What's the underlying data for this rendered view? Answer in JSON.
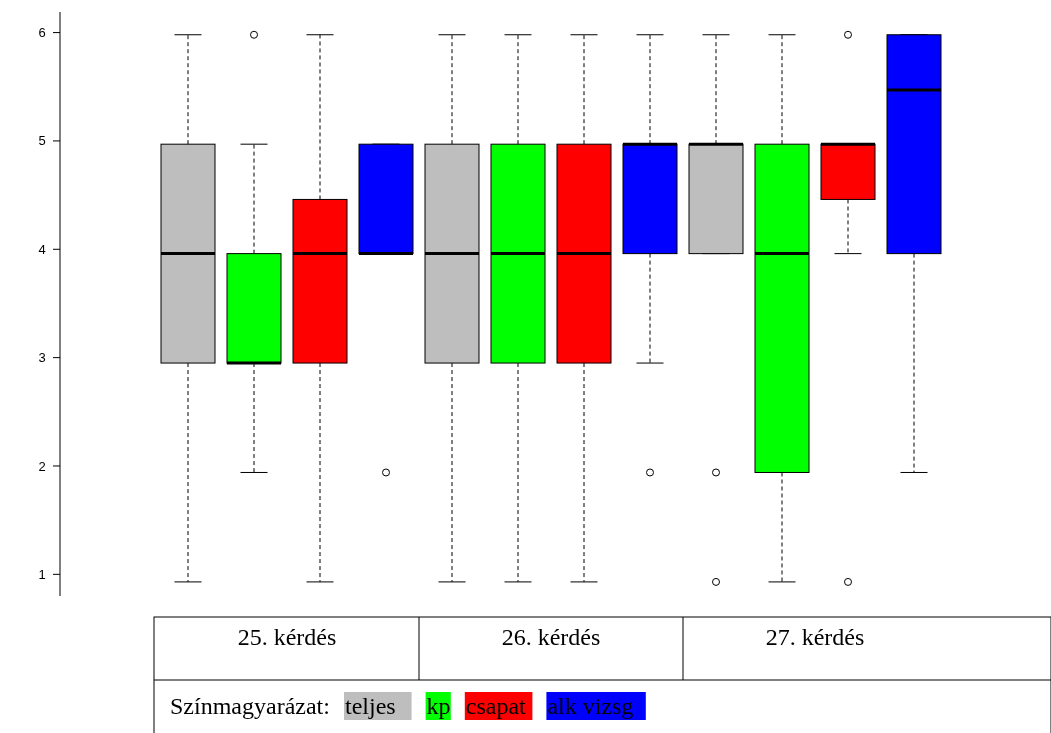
{
  "chart_data": {
    "type": "box",
    "categories": [
      "25. kérdés",
      "26. kérdés",
      "27. kérdés"
    ],
    "ylim": [
      0.8,
      6.19
    ],
    "yticks": [
      1,
      2,
      3,
      4,
      5,
      6
    ],
    "grid": false,
    "legend": "bottom",
    "legend_title": "Színmagyarázat:",
    "series": [
      {
        "name": "teljes",
        "color": "#bebebe",
        "boxes": [
          {
            "low": 0.93,
            "q1": 2.95,
            "median": 3.96,
            "q3": 4.97,
            "high": 5.98
          },
          {
            "low": 0.93,
            "q1": 2.95,
            "median": 3.96,
            "q3": 4.97,
            "high": 5.98
          },
          {
            "low": 3.96,
            "q1": 3.96,
            "median": 4.97,
            "q3": 4.97,
            "high": 5.98,
            "outliers": [
              1.94,
              0.93
            ]
          }
        ]
      },
      {
        "name": "kp",
        "color": "#00ff00",
        "boxes": [
          {
            "low": 1.94,
            "q1": 2.95,
            "median": 2.95,
            "q3": 3.96,
            "high": 4.97,
            "outliers": [
              5.98
            ]
          },
          {
            "low": 0.93,
            "q1": 2.95,
            "median": 3.96,
            "q3": 4.97,
            "high": 5.98
          },
          {
            "low": 0.93,
            "q1": 1.94,
            "median": 3.96,
            "q3": 4.97,
            "high": 5.98
          }
        ]
      },
      {
        "name": "csapat",
        "color": "#ff0000",
        "boxes": [
          {
            "low": 0.93,
            "q1": 2.95,
            "median": 3.96,
            "q3": 4.46,
            "high": 5.98
          },
          {
            "low": 0.93,
            "q1": 2.95,
            "median": 3.96,
            "q3": 4.97,
            "high": 5.98
          },
          {
            "low": 3.96,
            "q1": 4.46,
            "median": 4.97,
            "q3": 4.97,
            "high": 4.97,
            "outliers": [
              5.98,
              0.93
            ]
          }
        ]
      },
      {
        "name": "alk vizsg",
        "color": "#0000ff",
        "boxes": [
          {
            "low": 3.96,
            "q1": 3.96,
            "median": 3.96,
            "q3": 4.97,
            "high": 4.97,
            "outliers": [
              1.94
            ]
          },
          {
            "low": 2.95,
            "q1": 3.96,
            "median": 4.97,
            "q3": 4.97,
            "high": 5.98,
            "outliers": [
              1.94
            ]
          },
          {
            "low": 1.94,
            "q1": 3.96,
            "median": 5.47,
            "q3": 5.98,
            "high": 5.98
          }
        ]
      }
    ]
  }
}
